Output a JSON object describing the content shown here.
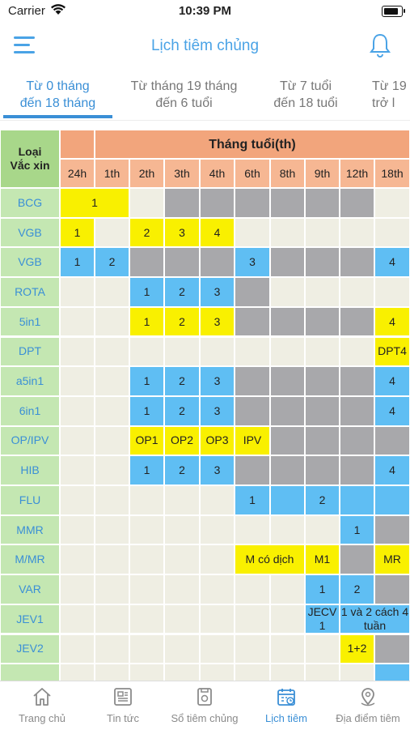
{
  "status_bar": {
    "carrier": "Carrier",
    "time": "10:39 PM"
  },
  "nav": {
    "title": "Lịch tiêm chủng"
  },
  "tabs": [
    {
      "line1": "Từ 0 tháng",
      "line2": "đến 18 tháng",
      "active": true
    },
    {
      "line1": "Từ tháng 19 tháng",
      "line2": "đến 6 tuổi",
      "active": false
    },
    {
      "line1": "Từ 7 tuổi",
      "line2": "đến 18 tuổi",
      "active": false
    },
    {
      "line1": "Từ 19",
      "line2": "trở l",
      "active": false
    }
  ],
  "schedule": {
    "corner_line1": "Loại",
    "corner_line2": "Vắc xin",
    "group_header": "Tháng tuổi(th)",
    "columns": [
      "24h",
      "1th",
      "2th",
      "3th",
      "4th",
      "6th",
      "8th",
      "9th",
      "12th",
      "18th"
    ],
    "rows": [
      {
        "label": "BCG",
        "cells": [
          [
            "y",
            "1",
            2
          ],
          [
            "e",
            ""
          ],
          [
            "g",
            ""
          ],
          [
            "g",
            ""
          ],
          [
            "g",
            ""
          ],
          [
            "g",
            ""
          ],
          [
            "g",
            ""
          ],
          [
            "g",
            ""
          ],
          [
            "e",
            ""
          ]
        ]
      },
      {
        "label": "VGB",
        "cells": [
          [
            "y",
            "1"
          ],
          [
            "e",
            ""
          ],
          [
            "y",
            "2"
          ],
          [
            "y",
            "3"
          ],
          [
            "y",
            "4"
          ],
          [
            "e",
            ""
          ],
          [
            "e",
            ""
          ],
          [
            "e",
            ""
          ],
          [
            "e",
            ""
          ],
          [
            "e",
            ""
          ]
        ]
      },
      {
        "label": "VGB",
        "cells": [
          [
            "b",
            "1"
          ],
          [
            "b",
            "2"
          ],
          [
            "g",
            ""
          ],
          [
            "g",
            ""
          ],
          [
            "g",
            ""
          ],
          [
            "b",
            "3"
          ],
          [
            "g",
            ""
          ],
          [
            "g",
            ""
          ],
          [
            "g",
            ""
          ],
          [
            "b",
            "4"
          ]
        ]
      },
      {
        "label": "ROTA",
        "cells": [
          [
            "e",
            ""
          ],
          [
            "e",
            ""
          ],
          [
            "b",
            "1"
          ],
          [
            "b",
            "2"
          ],
          [
            "b",
            "3"
          ],
          [
            "g",
            ""
          ],
          [
            "e",
            ""
          ],
          [
            "e",
            ""
          ],
          [
            "e",
            ""
          ],
          [
            "e",
            ""
          ]
        ]
      },
      {
        "label": "5in1",
        "cells": [
          [
            "e",
            ""
          ],
          [
            "e",
            ""
          ],
          [
            "y",
            "1"
          ],
          [
            "y",
            "2"
          ],
          [
            "y",
            "3"
          ],
          [
            "g",
            ""
          ],
          [
            "g",
            ""
          ],
          [
            "g",
            ""
          ],
          [
            "g",
            ""
          ],
          [
            "y",
            "4"
          ]
        ]
      },
      {
        "label": "DPT",
        "cells": [
          [
            "e",
            ""
          ],
          [
            "e",
            ""
          ],
          [
            "e",
            ""
          ],
          [
            "e",
            ""
          ],
          [
            "e",
            ""
          ],
          [
            "e",
            ""
          ],
          [
            "e",
            ""
          ],
          [
            "e",
            ""
          ],
          [
            "e",
            ""
          ],
          [
            "y",
            "DPT4"
          ]
        ]
      },
      {
        "label": "a5in1",
        "cells": [
          [
            "e",
            ""
          ],
          [
            "e",
            ""
          ],
          [
            "b",
            "1"
          ],
          [
            "b",
            "2"
          ],
          [
            "b",
            "3"
          ],
          [
            "g",
            ""
          ],
          [
            "g",
            ""
          ],
          [
            "g",
            ""
          ],
          [
            "g",
            ""
          ],
          [
            "b",
            "4"
          ]
        ]
      },
      {
        "label": "6in1",
        "cells": [
          [
            "e",
            ""
          ],
          [
            "e",
            ""
          ],
          [
            "b",
            "1"
          ],
          [
            "b",
            "2"
          ],
          [
            "b",
            "3"
          ],
          [
            "g",
            ""
          ],
          [
            "g",
            ""
          ],
          [
            "g",
            ""
          ],
          [
            "g",
            ""
          ],
          [
            "b",
            "4"
          ]
        ]
      },
      {
        "label": "OP/IPV",
        "cells": [
          [
            "e",
            ""
          ],
          [
            "e",
            ""
          ],
          [
            "y",
            "OP1"
          ],
          [
            "y",
            "OP2"
          ],
          [
            "y",
            "OP3"
          ],
          [
            "y",
            "IPV"
          ],
          [
            "g",
            ""
          ],
          [
            "g",
            ""
          ],
          [
            "g",
            ""
          ],
          [
            "g",
            ""
          ]
        ]
      },
      {
        "label": "HIB",
        "cells": [
          [
            "e",
            ""
          ],
          [
            "e",
            ""
          ],
          [
            "b",
            "1"
          ],
          [
            "b",
            "2"
          ],
          [
            "b",
            "3"
          ],
          [
            "g",
            ""
          ],
          [
            "g",
            ""
          ],
          [
            "g",
            ""
          ],
          [
            "g",
            ""
          ],
          [
            "b",
            "4"
          ]
        ]
      },
      {
        "label": "FLU",
        "cells": [
          [
            "e",
            ""
          ],
          [
            "e",
            ""
          ],
          [
            "e",
            ""
          ],
          [
            "e",
            ""
          ],
          [
            "e",
            ""
          ],
          [
            "b",
            "1"
          ],
          [
            "b",
            ""
          ],
          [
            "b",
            "2"
          ],
          [
            "b",
            ""
          ],
          [
            "b",
            ""
          ]
        ]
      },
      {
        "label": "MMR",
        "cells": [
          [
            "e",
            ""
          ],
          [
            "e",
            ""
          ],
          [
            "e",
            ""
          ],
          [
            "e",
            ""
          ],
          [
            "e",
            ""
          ],
          [
            "e",
            ""
          ],
          [
            "e",
            ""
          ],
          [
            "e",
            ""
          ],
          [
            "b",
            "1"
          ],
          [
            "g",
            ""
          ]
        ]
      },
      {
        "label": "M/MR",
        "cells": [
          [
            "e",
            ""
          ],
          [
            "e",
            ""
          ],
          [
            "e",
            ""
          ],
          [
            "e",
            ""
          ],
          [
            "e",
            ""
          ],
          [
            "y",
            "M có dịch",
            2
          ],
          [
            "y",
            "M1"
          ],
          [
            "g",
            ""
          ],
          [
            "y",
            "MR"
          ]
        ]
      },
      {
        "label": "VAR",
        "cells": [
          [
            "e",
            ""
          ],
          [
            "e",
            ""
          ],
          [
            "e",
            ""
          ],
          [
            "e",
            ""
          ],
          [
            "e",
            ""
          ],
          [
            "e",
            ""
          ],
          [
            "e",
            ""
          ],
          [
            "b",
            "1"
          ],
          [
            "b",
            "2"
          ],
          [
            "g",
            ""
          ]
        ]
      },
      {
        "label": "JEV1",
        "cells": [
          [
            "e",
            ""
          ],
          [
            "e",
            ""
          ],
          [
            "e",
            ""
          ],
          [
            "e",
            ""
          ],
          [
            "e",
            ""
          ],
          [
            "e",
            ""
          ],
          [
            "e",
            ""
          ],
          [
            "b",
            "JECV\n1"
          ],
          [
            "b",
            "1 và 2 cách 4 tuần",
            2
          ]
        ]
      },
      {
        "label": "JEV2",
        "cells": [
          [
            "e",
            ""
          ],
          [
            "e",
            ""
          ],
          [
            "e",
            ""
          ],
          [
            "e",
            ""
          ],
          [
            "e",
            ""
          ],
          [
            "e",
            ""
          ],
          [
            "e",
            ""
          ],
          [
            "e",
            ""
          ],
          [
            "y",
            "1+2"
          ],
          [
            "g",
            ""
          ]
        ]
      },
      {
        "label": "",
        "cells": [
          [
            "e",
            ""
          ],
          [
            "e",
            ""
          ],
          [
            "e",
            ""
          ],
          [
            "e",
            ""
          ],
          [
            "e",
            ""
          ],
          [
            "e",
            ""
          ],
          [
            "e",
            ""
          ],
          [
            "e",
            ""
          ],
          [
            "e",
            ""
          ],
          [
            "b",
            ""
          ]
        ]
      }
    ]
  },
  "colors": {
    "accent": "#3a8fd6",
    "yellow": "#f9f000",
    "blue": "#5fbef3",
    "gray": "#a8a8ab",
    "empty": "#efeee3",
    "header": "#f2a57c",
    "label_bg": "#c4e7b2"
  },
  "tabbar": [
    {
      "label": "Trang chủ",
      "icon": "home-icon",
      "active": false
    },
    {
      "label": "Tin tức",
      "icon": "news-icon",
      "active": false
    },
    {
      "label": "Sổ tiêm chủng",
      "icon": "vaccine-book-icon",
      "active": false
    },
    {
      "label": "Lịch tiêm",
      "icon": "calendar-icon",
      "active": true
    },
    {
      "label": "Địa điểm tiêm",
      "icon": "map-pin-icon",
      "active": false
    }
  ]
}
